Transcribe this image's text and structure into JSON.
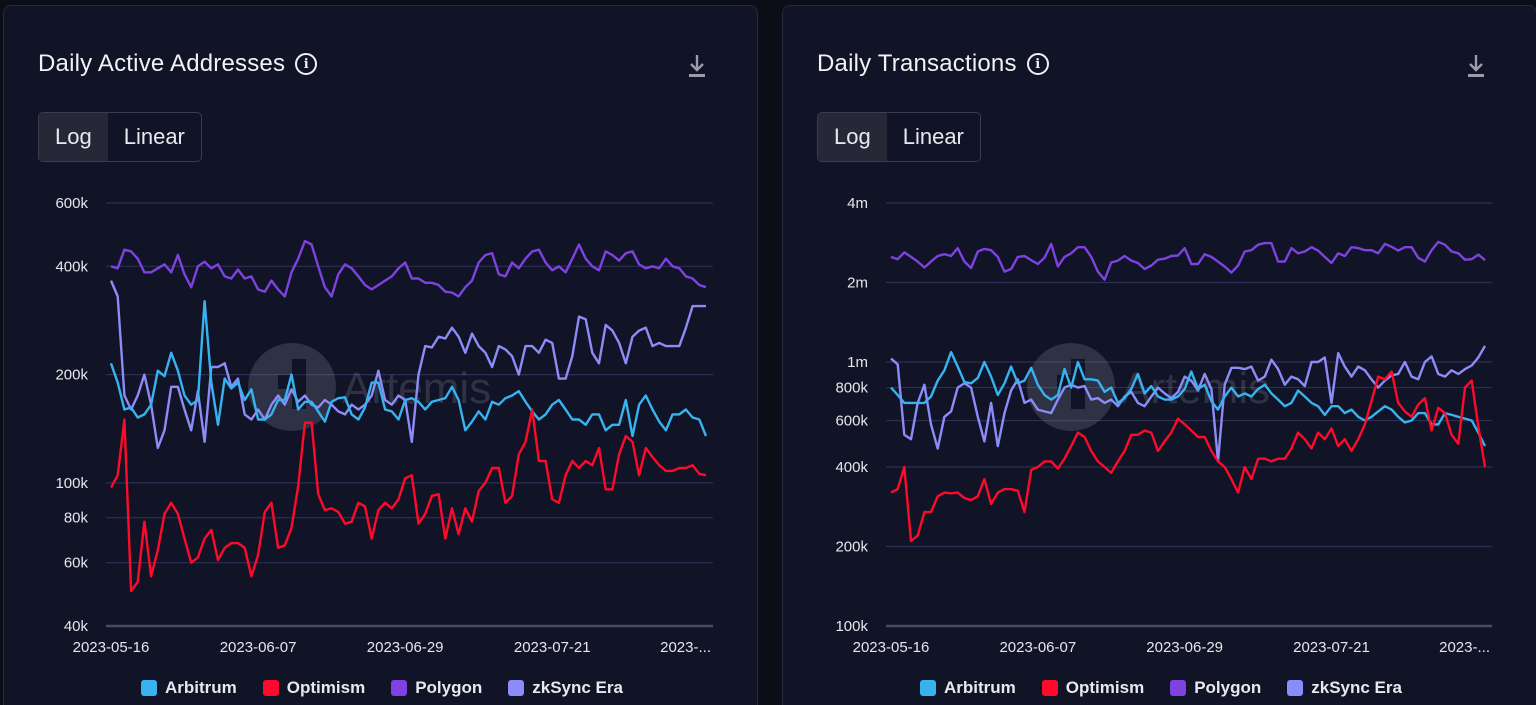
{
  "colors": {
    "background": "#0b0d17",
    "panel": "#111326",
    "grid": "#2c2f52",
    "axis": "#4a4c5e",
    "arbitrum": "#37b3f0",
    "optimism": "#ff0a2a",
    "polygon": "#7d42e0",
    "zksync": "#8c8cf8"
  },
  "panels": [
    {
      "title": "Daily Active Addresses",
      "info_icon": "info-icon",
      "download_icon": "download-icon",
      "toggle": {
        "options": [
          "Log",
          "Linear"
        ],
        "selected": "Log"
      },
      "watermark": "Artemis"
    },
    {
      "title": "Daily Transactions",
      "info_icon": "info-icon",
      "download_icon": "download-icon",
      "toggle": {
        "options": [
          "Log",
          "Linear"
        ],
        "selected": "Log"
      },
      "watermark": "Artemis"
    }
  ],
  "legend": [
    {
      "name": "Arbitrum",
      "key": "arbitrum"
    },
    {
      "name": "Optimism",
      "key": "optimism"
    },
    {
      "name": "Polygon",
      "key": "polygon"
    },
    {
      "name": "zkSync Era",
      "key": "zksync"
    }
  ],
  "chart_data": [
    {
      "type": "line",
      "title": "Daily Active Addresses",
      "scale": "log",
      "xlabel": "",
      "ylabel": "",
      "x_start": "2023-05-16",
      "x_ticks": [
        "2023-05-16",
        "2023-06-07",
        "2023-06-29",
        "2023-07-21",
        "2023-..."
      ],
      "x_tick_index": [
        0,
        22,
        44,
        66,
        88
      ],
      "ylim": [
        40000,
        600000
      ],
      "y_ticks": [
        40000,
        60000,
        80000,
        100000,
        200000,
        400000,
        600000
      ],
      "y_tick_labels": [
        "40k",
        "60k",
        "80k",
        "100k",
        "200k",
        "400k",
        "600k"
      ],
      "grid": true,
      "legend_position": "bottom",
      "series": [
        {
          "name": "Arbitrum",
          "key": "arbitrum",
          "values": [
            215000,
            190000,
            160000,
            162000,
            152000,
            155000,
            165000,
            205000,
            198000,
            230000,
            205000,
            175000,
            165000,
            170000,
            320000,
            190000,
            145000,
            195000,
            183000,
            190000,
            170000,
            182000,
            150000,
            150000,
            155000,
            170000,
            170000,
            200000,
            160000,
            168000,
            168000,
            158000,
            148000,
            168000,
            172000,
            173000,
            155000,
            150000,
            162000,
            190000,
            190000,
            160000,
            158000,
            150000,
            170000,
            172000,
            168000,
            160000,
            168000,
            170000,
            172000,
            185000,
            170000,
            140000,
            148000,
            158000,
            150000,
            168000,
            165000,
            172000,
            175000,
            180000,
            168000,
            158000,
            150000,
            155000,
            165000,
            170000,
            160000,
            150000,
            150000,
            145000,
            155000,
            155000,
            140000,
            145000,
            145000,
            170000,
            135000,
            165000,
            175000,
            160000,
            148000,
            140000,
            155000,
            155000,
            160000,
            152000,
            150000,
            135000
          ]
        },
        {
          "name": "Optimism",
          "key": "optimism",
          "values": [
            97000,
            105000,
            150000,
            50000,
            53000,
            78000,
            55000,
            65000,
            82000,
            88000,
            82000,
            70000,
            60000,
            62000,
            70000,
            74000,
            61000,
            66000,
            68000,
            68000,
            66000,
            55000,
            63000,
            83000,
            88000,
            66000,
            67000,
            75000,
            98000,
            147000,
            147000,
            93000,
            84000,
            85000,
            83000,
            77000,
            78000,
            88000,
            86000,
            70000,
            84000,
            88000,
            85000,
            90000,
            103000,
            105000,
            77000,
            82000,
            92000,
            93000,
            70000,
            85000,
            72000,
            85000,
            78000,
            95000,
            100000,
            110000,
            110000,
            88000,
            92000,
            120000,
            130000,
            160000,
            115000,
            115000,
            90000,
            88000,
            105000,
            115000,
            110000,
            115000,
            112000,
            125000,
            96000,
            96000,
            120000,
            135000,
            130000,
            105000,
            125000,
            118000,
            112000,
            108000,
            108000,
            110000,
            110000,
            112000,
            106000,
            105000
          ]
        },
        {
          "name": "Polygon",
          "key": "polygon",
          "values": [
            400000,
            395000,
            445000,
            440000,
            420000,
            385000,
            385000,
            395000,
            405000,
            385000,
            430000,
            380000,
            350000,
            400000,
            412000,
            395000,
            405000,
            375000,
            370000,
            392000,
            370000,
            375000,
            345000,
            340000,
            365000,
            345000,
            330000,
            385000,
            420000,
            470000,
            460000,
            400000,
            350000,
            330000,
            380000,
            405000,
            395000,
            375000,
            355000,
            345000,
            355000,
            365000,
            375000,
            395000,
            410000,
            370000,
            370000,
            360000,
            360000,
            355000,
            340000,
            338000,
            330000,
            350000,
            365000,
            410000,
            430000,
            435000,
            380000,
            375000,
            410000,
            395000,
            420000,
            440000,
            445000,
            410000,
            390000,
            400000,
            385000,
            420000,
            460000,
            420000,
            400000,
            390000,
            440000,
            430000,
            415000,
            435000,
            440000,
            405000,
            395000,
            400000,
            395000,
            420000,
            400000,
            395000,
            375000,
            370000,
            355000,
            350000
          ]
        },
        {
          "name": "zkSync Era",
          "key": "zksync",
          "values": [
            365000,
            330000,
            175000,
            160000,
            175000,
            200000,
            165000,
            125000,
            140000,
            185000,
            185000,
            160000,
            140000,
            180000,
            130000,
            210000,
            210000,
            215000,
            185000,
            195000,
            155000,
            150000,
            160000,
            150000,
            165000,
            175000,
            165000,
            182000,
            168000,
            175000,
            165000,
            162000,
            170000,
            165000,
            158000,
            155000,
            165000,
            160000,
            165000,
            175000,
            205000,
            170000,
            165000,
            175000,
            170000,
            130000,
            200000,
            240000,
            238000,
            255000,
            252000,
            270000,
            255000,
            230000,
            260000,
            240000,
            230000,
            210000,
            240000,
            235000,
            225000,
            200000,
            240000,
            240000,
            230000,
            250000,
            245000,
            195000,
            195000,
            225000,
            290000,
            285000,
            230000,
            215000,
            275000,
            265000,
            245000,
            215000,
            255000,
            265000,
            270000,
            240000,
            245000,
            240000,
            240000,
            240000,
            270000,
            310000,
            310000,
            310000
          ]
        }
      ]
    },
    {
      "type": "line",
      "title": "Daily Transactions",
      "scale": "log",
      "xlabel": "",
      "ylabel": "",
      "x_start": "2023-05-16",
      "x_ticks": [
        "2023-05-16",
        "2023-06-07",
        "2023-06-29",
        "2023-07-21",
        "2023-..."
      ],
      "x_tick_index": [
        0,
        22,
        44,
        66,
        88
      ],
      "ylim": [
        100000,
        4000000
      ],
      "y_ticks": [
        100000,
        200000,
        400000,
        600000,
        800000,
        1000000,
        2000000,
        4000000
      ],
      "y_tick_labels": [
        "100k",
        "200k",
        "400k",
        "600k",
        "800k",
        "1m",
        "2m",
        "4m"
      ],
      "grid": true,
      "legend_position": "bottom",
      "series": [
        {
          "name": "Arbitrum",
          "key": "arbitrum",
          "values": [
            800000,
            750000,
            700000,
            700000,
            700000,
            700000,
            740000,
            850000,
            930000,
            1090000,
            960000,
            840000,
            830000,
            870000,
            1000000,
            880000,
            750000,
            830000,
            960000,
            830000,
            850000,
            950000,
            820000,
            750000,
            720000,
            750000,
            940000,
            800000,
            1000000,
            860000,
            860000,
            850000,
            770000,
            800000,
            700000,
            730000,
            790000,
            900000,
            760000,
            810000,
            740000,
            720000,
            720000,
            740000,
            790000,
            920000,
            790000,
            820000,
            710000,
            660000,
            740000,
            800000,
            740000,
            760000,
            740000,
            790000,
            820000,
            760000,
            720000,
            680000,
            700000,
            780000,
            740000,
            700000,
            680000,
            630000,
            680000,
            680000,
            640000,
            660000,
            620000,
            600000,
            620000,
            650000,
            680000,
            660000,
            620000,
            590000,
            600000,
            640000,
            640000,
            580000,
            580000,
            640000,
            630000,
            620000,
            610000,
            600000,
            540000,
            480000
          ]
        },
        {
          "name": "Optimism",
          "key": "optimism",
          "values": [
            320000,
            330000,
            400000,
            210000,
            220000,
            270000,
            270000,
            310000,
            320000,
            318000,
            320000,
            305000,
            300000,
            310000,
            360000,
            290000,
            320000,
            330000,
            330000,
            325000,
            270000,
            390000,
            400000,
            420000,
            420000,
            395000,
            430000,
            480000,
            540000,
            520000,
            460000,
            420000,
            400000,
            380000,
            420000,
            460000,
            530000,
            530000,
            550000,
            540000,
            460000,
            500000,
            540000,
            610000,
            580000,
            550000,
            520000,
            520000,
            460000,
            420000,
            400000,
            360000,
            320000,
            400000,
            360000,
            430000,
            430000,
            420000,
            430000,
            430000,
            470000,
            540000,
            510000,
            470000,
            540000,
            510000,
            560000,
            480000,
            510000,
            460000,
            510000,
            580000,
            710000,
            880000,
            860000,
            920000,
            700000,
            650000,
            620000,
            690000,
            730000,
            550000,
            670000,
            640000,
            530000,
            490000,
            800000,
            850000,
            570000,
            400000
          ]
        },
        {
          "name": "Polygon",
          "key": "polygon",
          "values": [
            2500000,
            2450000,
            2600000,
            2500000,
            2400000,
            2280000,
            2400000,
            2520000,
            2560000,
            2520000,
            2700000,
            2400000,
            2270000,
            2620000,
            2680000,
            2650000,
            2500000,
            2200000,
            2250000,
            2500000,
            2520000,
            2430000,
            2350000,
            2480000,
            2800000,
            2300000,
            2500000,
            2580000,
            2720000,
            2720000,
            2500000,
            2200000,
            2050000,
            2380000,
            2420000,
            2520000,
            2420000,
            2370000,
            2250000,
            2320000,
            2440000,
            2460000,
            2520000,
            2530000,
            2700000,
            2350000,
            2350000,
            2560000,
            2500000,
            2400000,
            2300000,
            2180000,
            2320000,
            2620000,
            2650000,
            2780000,
            2820000,
            2820000,
            2400000,
            2400000,
            2700000,
            2580000,
            2620000,
            2720000,
            2640000,
            2500000,
            2370000,
            2580000,
            2520000,
            2720000,
            2700000,
            2650000,
            2650000,
            2580000,
            2800000,
            2730000,
            2640000,
            2720000,
            2720000,
            2480000,
            2400000,
            2650000,
            2850000,
            2780000,
            2620000,
            2580000,
            2440000,
            2450000,
            2550000,
            2430000
          ]
        },
        {
          "name": "zkSync Era",
          "key": "zksync",
          "values": [
            1030000,
            980000,
            530000,
            510000,
            700000,
            820000,
            580000,
            470000,
            620000,
            650000,
            800000,
            830000,
            800000,
            620000,
            500000,
            700000,
            480000,
            640000,
            780000,
            860000,
            700000,
            720000,
            660000,
            650000,
            640000,
            720000,
            800000,
            820000,
            800000,
            810000,
            720000,
            730000,
            700000,
            720000,
            680000,
            740000,
            770000,
            700000,
            680000,
            740000,
            800000,
            760000,
            730000,
            770000,
            880000,
            850000,
            780000,
            900000,
            790000,
            420000,
            820000,
            950000,
            950000,
            940000,
            960000,
            850000,
            880000,
            1020000,
            940000,
            820000,
            880000,
            860000,
            810000,
            1000000,
            1000000,
            1040000,
            700000,
            1080000,
            960000,
            880000,
            960000,
            930000,
            860000,
            800000,
            850000,
            890000,
            900000,
            1000000,
            880000,
            860000,
            1000000,
            1050000,
            900000,
            880000,
            930000,
            900000,
            940000,
            970000,
            1040000,
            1150000
          ]
        }
      ]
    }
  ]
}
